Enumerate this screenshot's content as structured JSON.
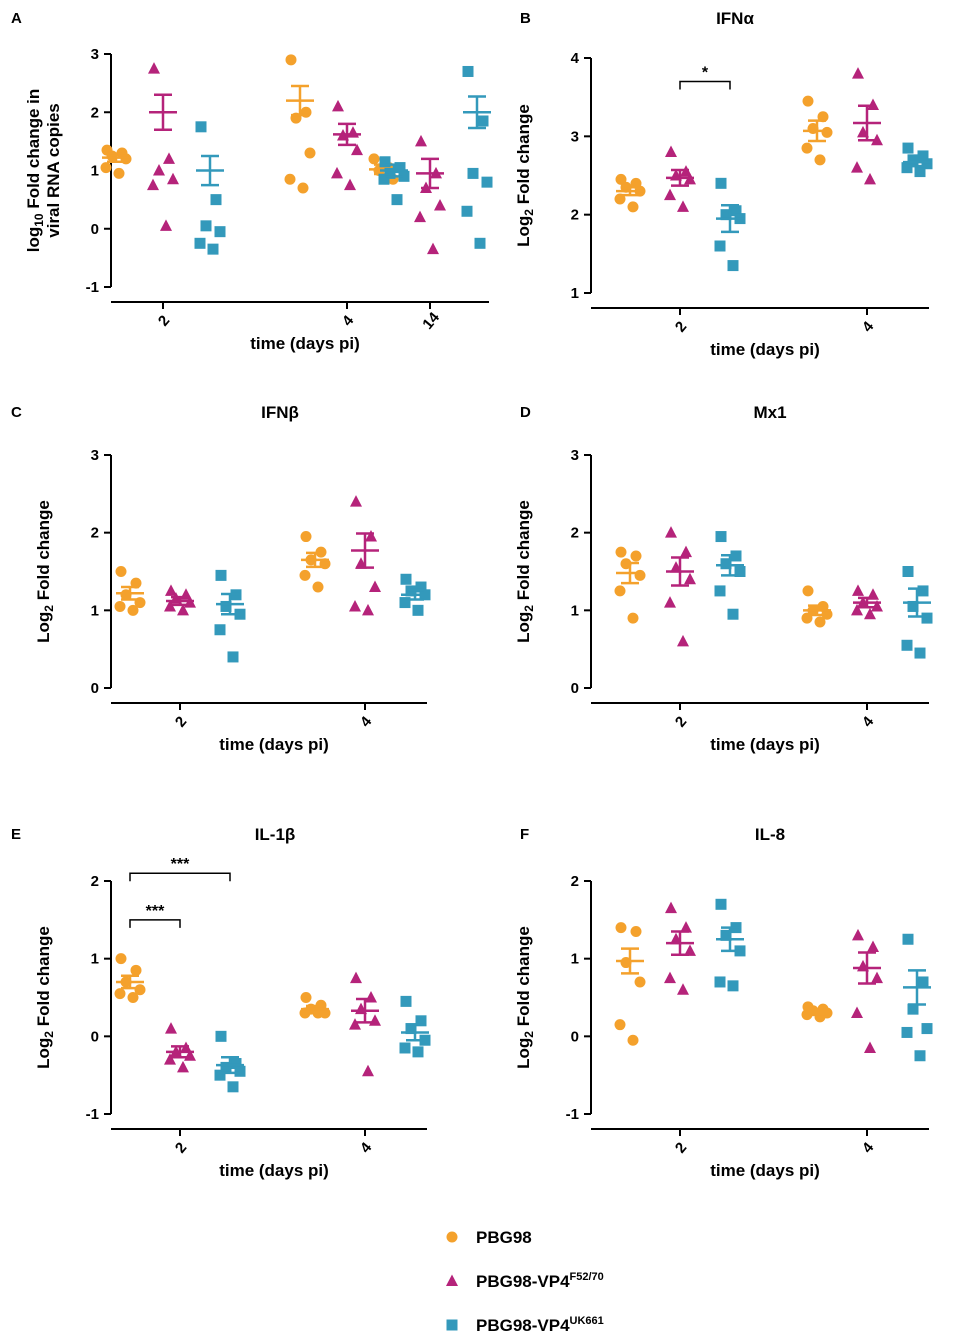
{
  "colors": {
    "PBG98": "#f4a12c",
    "VP4F": "#b5237a",
    "VP4UK": "#3399bb"
  },
  "legend": [
    {
      "key": "PBG98",
      "name": "PBG98",
      "sup": "",
      "marker": "circle",
      "color": "#f4a12c"
    },
    {
      "key": "VP4F",
      "name": "PBG98-VP4",
      "sup": "F52/70",
      "marker": "triangle",
      "color": "#b5237a"
    },
    {
      "key": "VP4UK",
      "name": "PBG98-VP4",
      "sup": "UK661",
      "marker": "square",
      "color": "#3399bb"
    }
  ],
  "chart_data": [
    {
      "id": "A",
      "letter": "A",
      "type": "scatter",
      "title": "",
      "xlabel": "time (days pi)",
      "ylabel_lines": [
        {
          "parts": [
            {
              "t": "log"
            },
            {
              "t": "10",
              "sub": true
            },
            {
              "t": " Fold change in"
            }
          ]
        },
        {
          "parts": [
            {
              "t": "viral RNA copies"
            }
          ]
        }
      ],
      "ylim": [
        -1,
        3
      ],
      "yticks": [
        "-1",
        "0",
        "1",
        "2",
        "3"
      ],
      "categories": [
        "2",
        "4",
        "14"
      ],
      "series": [
        {
          "key": "PBG98",
          "groups": [
            {
              "points": [
                1.35,
                1.3,
                1.25,
                1.2,
                1.05,
                0.95
              ],
              "mean": 1.22,
              "sem": 0.07
            },
            {
              "points": [
                2.9,
                2.0,
                1.9,
                1.3,
                0.85,
                0.7
              ],
              "mean": 2.2,
              "sem": 0.25
            },
            {
              "points": [
                1.2,
                1.05,
                1.0,
                0.85
              ],
              "mean": 1.02,
              "sem": 0.08
            }
          ]
        },
        {
          "key": "VP4F",
          "groups": [
            {
              "points": [
                2.75,
                1.2,
                1.0,
                0.85,
                0.75,
                0.05
              ],
              "mean": 2.0,
              "sem": 0.3
            },
            {
              "points": [
                2.1,
                1.65,
                1.6,
                1.35,
                0.95,
                0.75
              ],
              "mean": 1.62,
              "sem": 0.18
            },
            {
              "points": [
                1.5,
                0.95,
                0.7,
                0.4,
                0.2,
                -0.35
              ],
              "mean": 0.95,
              "sem": 0.25
            }
          ]
        },
        {
          "key": "VP4UK",
          "groups": [
            {
              "points": [
                1.75,
                0.5,
                0.05,
                -0.05,
                -0.25,
                -0.35
              ],
              "mean": 1.0,
              "sem": 0.25
            },
            {
              "points": [
                1.15,
                1.05,
                0.95,
                0.9,
                0.85,
                0.5
              ],
              "mean": 1.0,
              "sem": 0.1
            },
            {
              "points": [
                2.7,
                1.85,
                0.95,
                0.8,
                0.3,
                -0.25
              ],
              "mean": 2.0,
              "sem": 0.27
            }
          ]
        }
      ],
      "sig": []
    },
    {
      "id": "B",
      "letter": "B",
      "type": "scatter",
      "title": "IFNα",
      "xlabel": "time (days pi)",
      "ylabel_lines": [
        {
          "parts": [
            {
              "t": "Log"
            },
            {
              "t": "2",
              "sub": true
            },
            {
              "t": " Fold change"
            }
          ]
        }
      ],
      "ylim": [
        1,
        4
      ],
      "yticks": [
        "1",
        "2",
        "3",
        "4"
      ],
      "categories": [
        "2",
        "4"
      ],
      "series": [
        {
          "key": "PBG98",
          "groups": [
            {
              "points": [
                2.45,
                2.4,
                2.35,
                2.3,
                2.2,
                2.1
              ],
              "mean": 2.3,
              "sem": 0.05
            },
            {
              "points": [
                3.45,
                3.25,
                3.1,
                3.05,
                2.85,
                2.7
              ],
              "mean": 3.07,
              "sem": 0.13
            }
          ]
        },
        {
          "key": "VP4F",
          "groups": [
            {
              "points": [
                2.8,
                2.55,
                2.5,
                2.45,
                2.25,
                2.1
              ],
              "mean": 2.47,
              "sem": 0.1
            },
            {
              "points": [
                3.8,
                3.4,
                3.05,
                2.95,
                2.6,
                2.45
              ],
              "mean": 3.17,
              "sem": 0.22
            }
          ]
        },
        {
          "key": "VP4UK",
          "groups": [
            {
              "points": [
                2.4,
                2.05,
                2.0,
                1.95,
                1.6,
                1.35
              ],
              "mean": 1.95,
              "sem": 0.17
            },
            {
              "points": [
                2.85,
                2.75,
                2.7,
                2.65,
                2.6,
                2.55
              ],
              "mean": 2.67,
              "sem": 0.05
            }
          ]
        }
      ],
      "sig": [
        {
          "label": "*",
          "group": 0,
          "from": 1,
          "to": 2,
          "y": 3.7
        }
      ]
    },
    {
      "id": "C",
      "letter": "C",
      "type": "scatter",
      "title": "IFNβ",
      "xlabel": "time (days pi)",
      "ylabel_lines": [
        {
          "parts": [
            {
              "t": "Log"
            },
            {
              "t": "2",
              "sub": true
            },
            {
              "t": " Fold change"
            }
          ]
        }
      ],
      "ylim": [
        0,
        3
      ],
      "yticks": [
        "0",
        "1",
        "2",
        "3"
      ],
      "categories": [
        "2",
        "4"
      ],
      "series": [
        {
          "key": "PBG98",
          "groups": [
            {
              "points": [
                1.5,
                1.35,
                1.2,
                1.1,
                1.05,
                1.0
              ],
              "mean": 1.22,
              "sem": 0.08
            },
            {
              "points": [
                1.95,
                1.75,
                1.65,
                1.6,
                1.45,
                1.3
              ],
              "mean": 1.65,
              "sem": 0.09
            }
          ]
        },
        {
          "key": "VP4F",
          "groups": [
            {
              "points": [
                1.25,
                1.2,
                1.15,
                1.1,
                1.05,
                1.0
              ],
              "mean": 1.12,
              "sem": 0.05
            },
            {
              "points": [
                2.4,
                1.95,
                1.6,
                1.3,
                1.05,
                1.0
              ],
              "mean": 1.77,
              "sem": 0.22
            }
          ]
        },
        {
          "key": "VP4UK",
          "groups": [
            {
              "points": [
                1.45,
                1.2,
                1.05,
                0.95,
                0.75,
                0.4
              ],
              "mean": 1.08,
              "sem": 0.13
            },
            {
              "points": [
                1.4,
                1.3,
                1.25,
                1.2,
                1.1,
                1.0
              ],
              "mean": 1.2,
              "sem": 0.06
            }
          ]
        }
      ],
      "sig": []
    },
    {
      "id": "D",
      "letter": "D",
      "type": "scatter",
      "title": "Mx1",
      "xlabel": "time (days pi)",
      "ylabel_lines": [
        {
          "parts": [
            {
              "t": "Log"
            },
            {
              "t": "2",
              "sub": true
            },
            {
              "t": " Fold change"
            }
          ]
        }
      ],
      "ylim": [
        0,
        3
      ],
      "yticks": [
        "0",
        "1",
        "2",
        "3"
      ],
      "categories": [
        "2",
        "4"
      ],
      "series": [
        {
          "key": "PBG98",
          "groups": [
            {
              "points": [
                1.75,
                1.7,
                1.6,
                1.45,
                1.25,
                0.9
              ],
              "mean": 1.48,
              "sem": 0.13
            },
            {
              "points": [
                1.25,
                1.05,
                1.0,
                0.95,
                0.9,
                0.85
              ],
              "mean": 1.0,
              "sem": 0.06
            }
          ]
        },
        {
          "key": "VP4F",
          "groups": [
            {
              "points": [
                2.0,
                1.75,
                1.55,
                1.4,
                1.1,
                0.6
              ],
              "mean": 1.5,
              "sem": 0.18
            },
            {
              "points": [
                1.25,
                1.2,
                1.1,
                1.05,
                1.0,
                0.95
              ],
              "mean": 1.1,
              "sem": 0.06
            }
          ]
        },
        {
          "key": "VP4UK",
          "groups": [
            {
              "points": [
                1.95,
                1.7,
                1.6,
                1.5,
                1.25,
                0.95
              ],
              "mean": 1.58,
              "sem": 0.13
            },
            {
              "points": [
                1.5,
                1.25,
                1.05,
                0.9,
                0.55,
                0.45
              ],
              "mean": 1.1,
              "sem": 0.18
            }
          ]
        }
      ],
      "sig": []
    },
    {
      "id": "E",
      "letter": "E",
      "type": "scatter",
      "title": "IL-1β",
      "xlabel": "time (days pi)",
      "ylabel_lines": [
        {
          "parts": [
            {
              "t": "Log"
            },
            {
              "t": "2",
              "sub": true
            },
            {
              "t": " Fold change"
            }
          ]
        }
      ],
      "ylim": [
        -1,
        2
      ],
      "yticks": [
        "-1",
        "0",
        "1",
        "2"
      ],
      "categories": [
        "2",
        "4"
      ],
      "series": [
        {
          "key": "PBG98",
          "groups": [
            {
              "points": [
                1.0,
                0.85,
                0.7,
                0.6,
                0.55,
                0.5
              ],
              "mean": 0.7,
              "sem": 0.08
            },
            {
              "points": [
                0.5,
                0.4,
                0.35,
                0.3,
                0.3,
                0.3
              ],
              "mean": 0.35,
              "sem": 0.04
            }
          ]
        },
        {
          "key": "VP4F",
          "groups": [
            {
              "points": [
                0.1,
                -0.15,
                -0.2,
                -0.25,
                -0.3,
                -0.4
              ],
              "mean": -0.2,
              "sem": 0.07
            },
            {
              "points": [
                0.75,
                0.5,
                0.35,
                0.2,
                0.15,
                -0.45
              ],
              "mean": 0.33,
              "sem": 0.15
            }
          ]
        },
        {
          "key": "VP4UK",
          "groups": [
            {
              "points": [
                0.0,
                -0.35,
                -0.4,
                -0.45,
                -0.5,
                -0.65
              ],
              "mean": -0.37,
              "sem": 0.1
            },
            {
              "points": [
                0.45,
                0.2,
                0.1,
                -0.05,
                -0.15,
                -0.2
              ],
              "mean": 0.05,
              "sem": 0.1
            }
          ]
        }
      ],
      "sig": [
        {
          "label": "***",
          "group": 0,
          "from": 0,
          "to": 1,
          "y": 1.5
        },
        {
          "label": "***",
          "group": 0,
          "from": 0,
          "to": 2,
          "y": 2.1
        }
      ]
    },
    {
      "id": "F",
      "letter": "F",
      "type": "scatter",
      "title": "IL-8",
      "xlabel": "time (days pi)",
      "ylabel_lines": [
        {
          "parts": [
            {
              "t": "Log"
            },
            {
              "t": "2",
              "sub": true
            },
            {
              "t": " Fold change"
            }
          ]
        }
      ],
      "ylim": [
        -1,
        2
      ],
      "yticks": [
        "-1",
        "0",
        "1",
        "2"
      ],
      "categories": [
        "2",
        "4"
      ],
      "series": [
        {
          "key": "PBG98",
          "groups": [
            {
              "points": [
                1.4,
                1.35,
                0.95,
                0.7,
                0.15,
                -0.05
              ],
              "mean": 0.97,
              "sem": 0.16
            },
            {
              "points": [
                0.38,
                0.35,
                0.33,
                0.3,
                0.28,
                0.25
              ],
              "mean": 0.3,
              "sem": 0.02
            }
          ]
        },
        {
          "key": "VP4F",
          "groups": [
            {
              "points": [
                1.65,
                1.4,
                1.25,
                1.1,
                0.75,
                0.6
              ],
              "mean": 1.2,
              "sem": 0.15
            },
            {
              "points": [
                1.3,
                1.15,
                0.9,
                0.75,
                0.3,
                -0.15
              ],
              "mean": 0.88,
              "sem": 0.2
            }
          ]
        },
        {
          "key": "VP4UK",
          "groups": [
            {
              "points": [
                1.7,
                1.4,
                1.3,
                1.1,
                0.7,
                0.65
              ],
              "mean": 1.25,
              "sem": 0.15
            },
            {
              "points": [
                1.25,
                0.7,
                0.35,
                0.1,
                0.05,
                -0.25
              ],
              "mean": 0.63,
              "sem": 0.22
            }
          ]
        }
      ],
      "sig": []
    }
  ]
}
